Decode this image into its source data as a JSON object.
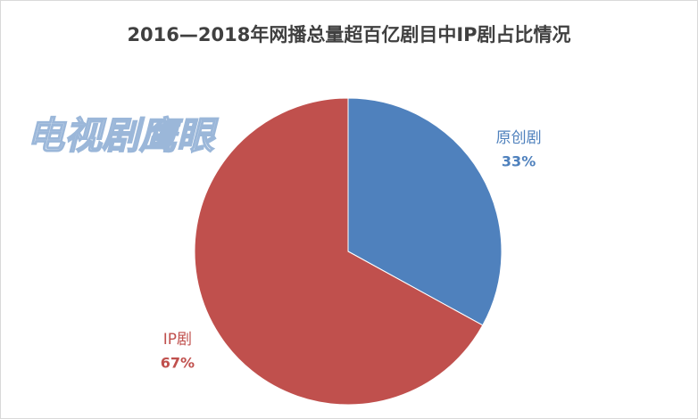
{
  "chart_data": {
    "type": "pie",
    "title": "2016—2018年网播总量超百亿剧目中IP剧占比情况",
    "watermark": "电视剧鹰眼",
    "categories": [
      "原创剧",
      "IP剧"
    ],
    "values": [
      33,
      67
    ],
    "value_labels": [
      "33%",
      "67%"
    ],
    "colors": [
      "#4f81bd",
      "#c0504d"
    ]
  }
}
